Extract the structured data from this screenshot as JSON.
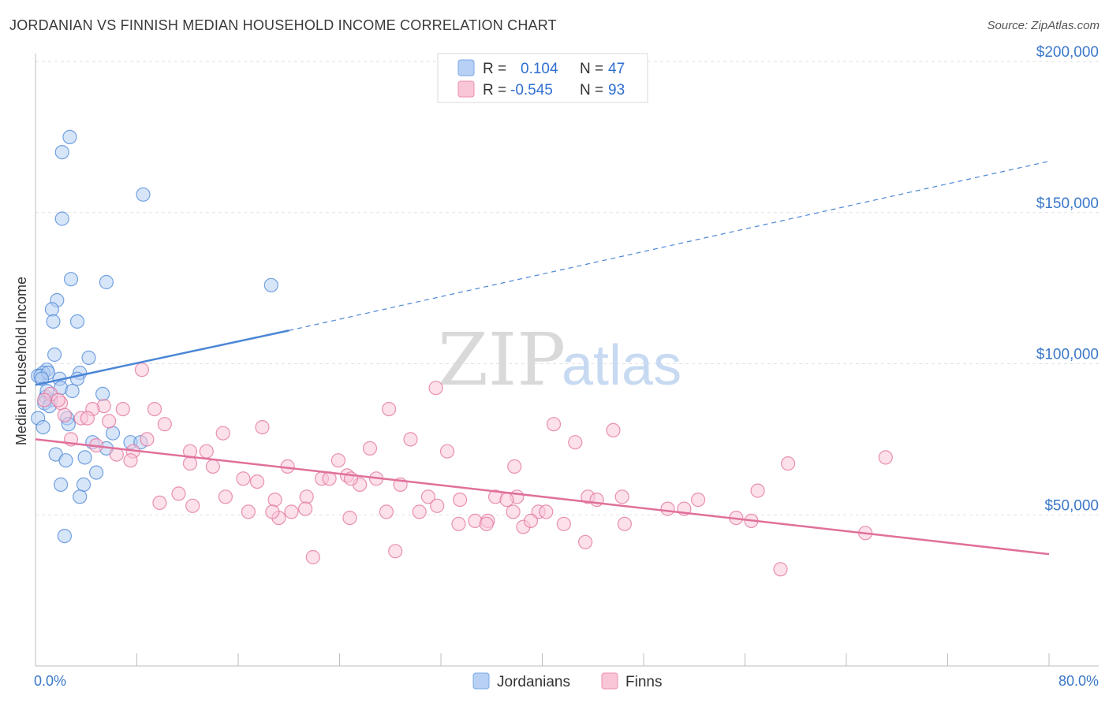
{
  "header": {
    "title": "JORDANIAN VS FINNISH MEDIAN HOUSEHOLD INCOME CORRELATION CHART",
    "source": "Source: ZipAtlas.com"
  },
  "watermark": {
    "part1": "ZIP",
    "part2": "atlas"
  },
  "legend": {
    "r_label": "R =",
    "n_label": "N =",
    "rows": [
      {
        "series": "Jordanians",
        "r": "0.104",
        "n": "47",
        "color": "#7aaae8",
        "fill": "#b7d0f4"
      },
      {
        "series": "Finns",
        "r": "-0.545",
        "n": "93",
        "color": "#ec8fb0",
        "fill": "#f9c6d8"
      }
    ]
  },
  "bottom_legend": [
    {
      "label": "Jordanians",
      "fill": "#b7d0f4",
      "stroke": "#7aaae8"
    },
    {
      "label": "Finns",
      "fill": "#f9c6d8",
      "stroke": "#ec8fb0"
    }
  ],
  "chart_data": {
    "type": "scatter",
    "title": "JORDANIAN VS FINNISH MEDIAN HOUSEHOLD INCOME CORRELATION CHART",
    "xlabel": "",
    "ylabel": "Median Household Income",
    "xlim": [
      0,
      80
    ],
    "ylim": [
      0,
      210000
    ],
    "x_tick_labels": [
      "0.0%",
      "80.0%"
    ],
    "y_ticks": [
      {
        "value": 50000,
        "label": "$50,000"
      },
      {
        "value": 100000,
        "label": "$100,000"
      },
      {
        "value": 150000,
        "label": "$150,000"
      },
      {
        "value": 200000,
        "label": "$200,000"
      }
    ],
    "grid": "horizontal dashed",
    "legend_position": "top-center",
    "series": [
      {
        "name": "Jordanians",
        "color": "#4a86d6",
        "fill": "#b7d0f4",
        "trend": {
          "x0": 0,
          "y0": 93000,
          "x1": 20,
          "y1": 111000,
          "dashed_to_x": 80,
          "dashed_to_y": 167000
        },
        "points": [
          [
            2.7,
            175000
          ],
          [
            2.1,
            170000
          ],
          [
            8.5,
            156000
          ],
          [
            2.1,
            148000
          ],
          [
            2.8,
            128000
          ],
          [
            5.6,
            127000
          ],
          [
            18.6,
            126000
          ],
          [
            1.7,
            121000
          ],
          [
            1.3,
            118000
          ],
          [
            1.4,
            114000
          ],
          [
            3.3,
            114000
          ],
          [
            1.5,
            103000
          ],
          [
            4.2,
            102000
          ],
          [
            0.9,
            98000
          ],
          [
            0.6,
            97000
          ],
          [
            0.2,
            96000
          ],
          [
            0.4,
            96000
          ],
          [
            1.0,
            97000
          ],
          [
            3.5,
            97000
          ],
          [
            3.3,
            95000
          ],
          [
            1.9,
            95000
          ],
          [
            0.5,
            95000
          ],
          [
            2.0,
            92000
          ],
          [
            2.9,
            91000
          ],
          [
            5.3,
            90000
          ],
          [
            0.8,
            89000
          ],
          [
            1.2,
            88000
          ],
          [
            0.7,
            87000
          ],
          [
            1.1,
            86000
          ],
          [
            0.2,
            82000
          ],
          [
            2.5,
            82000
          ],
          [
            2.6,
            80000
          ],
          [
            0.6,
            79000
          ],
          [
            6.1,
            77000
          ],
          [
            4.5,
            74000
          ],
          [
            7.5,
            74000
          ],
          [
            8.3,
            74000
          ],
          [
            5.6,
            72000
          ],
          [
            1.6,
            70000
          ],
          [
            3.9,
            69000
          ],
          [
            2.4,
            68000
          ],
          [
            4.8,
            64000
          ],
          [
            2.0,
            60000
          ],
          [
            3.8,
            60000
          ],
          [
            3.5,
            56000
          ],
          [
            2.3,
            43000
          ],
          [
            0.9,
            91000
          ]
        ]
      },
      {
        "name": "Finns",
        "color": "#e0709a",
        "fill": "#f9c6d8",
        "trend": {
          "x0": 0,
          "y0": 75000,
          "x1": 80,
          "y1": 37000
        },
        "points": [
          [
            8.4,
            98000
          ],
          [
            31.6,
            92000
          ],
          [
            1.2,
            90000
          ],
          [
            0.7,
            88000
          ],
          [
            2.0,
            87000
          ],
          [
            5.4,
            86000
          ],
          [
            4.5,
            85000
          ],
          [
            6.9,
            85000
          ],
          [
            9.4,
            85000
          ],
          [
            27.9,
            85000
          ],
          [
            2.3,
            83000
          ],
          [
            3.6,
            82000
          ],
          [
            4.1,
            82000
          ],
          [
            5.8,
            81000
          ],
          [
            40.9,
            80000
          ],
          [
            10.2,
            80000
          ],
          [
            17.9,
            79000
          ],
          [
            45.6,
            78000
          ],
          [
            14.8,
            77000
          ],
          [
            2.8,
            75000
          ],
          [
            8.8,
            75000
          ],
          [
            29.6,
            75000
          ],
          [
            42.6,
            74000
          ],
          [
            26.4,
            72000
          ],
          [
            4.8,
            73000
          ],
          [
            12.2,
            71000
          ],
          [
            13.5,
            71000
          ],
          [
            7.7,
            71000
          ],
          [
            32.5,
            71000
          ],
          [
            6.4,
            70000
          ],
          [
            23.9,
            68000
          ],
          [
            7.5,
            68000
          ],
          [
            12.2,
            67000
          ],
          [
            59.4,
            67000
          ],
          [
            67.1,
            69000
          ],
          [
            37.8,
            66000
          ],
          [
            14.0,
            66000
          ],
          [
            19.9,
            66000
          ],
          [
            24.6,
            63000
          ],
          [
            17.5,
            61000
          ],
          [
            22.6,
            62000
          ],
          [
            16.4,
            62000
          ],
          [
            23.2,
            62000
          ],
          [
            26.9,
            62000
          ],
          [
            28.8,
            60000
          ],
          [
            25.6,
            60000
          ],
          [
            57.0,
            58000
          ],
          [
            11.3,
            57000
          ],
          [
            15.0,
            56000
          ],
          [
            18.9,
            55000
          ],
          [
            21.4,
            56000
          ],
          [
            31.0,
            56000
          ],
          [
            33.5,
            55000
          ],
          [
            36.3,
            56000
          ],
          [
            38.0,
            56000
          ],
          [
            46.3,
            56000
          ],
          [
            43.6,
            56000
          ],
          [
            44.3,
            55000
          ],
          [
            37.2,
            55000
          ],
          [
            52.3,
            55000
          ],
          [
            9.8,
            54000
          ],
          [
            12.4,
            53000
          ],
          [
            16.8,
            51000
          ],
          [
            20.2,
            51000
          ],
          [
            21.3,
            52000
          ],
          [
            27.7,
            51000
          ],
          [
            30.3,
            51000
          ],
          [
            31.7,
            53000
          ],
          [
            39.7,
            51000
          ],
          [
            40.3,
            51000
          ],
          [
            49.9,
            52000
          ],
          [
            51.2,
            52000
          ],
          [
            19.2,
            49000
          ],
          [
            18.7,
            51000
          ],
          [
            24.8,
            49000
          ],
          [
            34.7,
            48000
          ],
          [
            35.7,
            48000
          ],
          [
            38.5,
            46000
          ],
          [
            39.1,
            48000
          ],
          [
            41.7,
            47000
          ],
          [
            46.5,
            47000
          ],
          [
            56.5,
            48000
          ],
          [
            35.6,
            47000
          ],
          [
            33.4,
            47000
          ],
          [
            37.7,
            51000
          ],
          [
            24.9,
            62000
          ],
          [
            55.3,
            49000
          ],
          [
            65.5,
            44000
          ],
          [
            43.4,
            41000
          ],
          [
            28.4,
            38000
          ],
          [
            21.9,
            36000
          ],
          [
            58.8,
            32000
          ],
          [
            1.8,
            88000
          ]
        ]
      }
    ]
  }
}
